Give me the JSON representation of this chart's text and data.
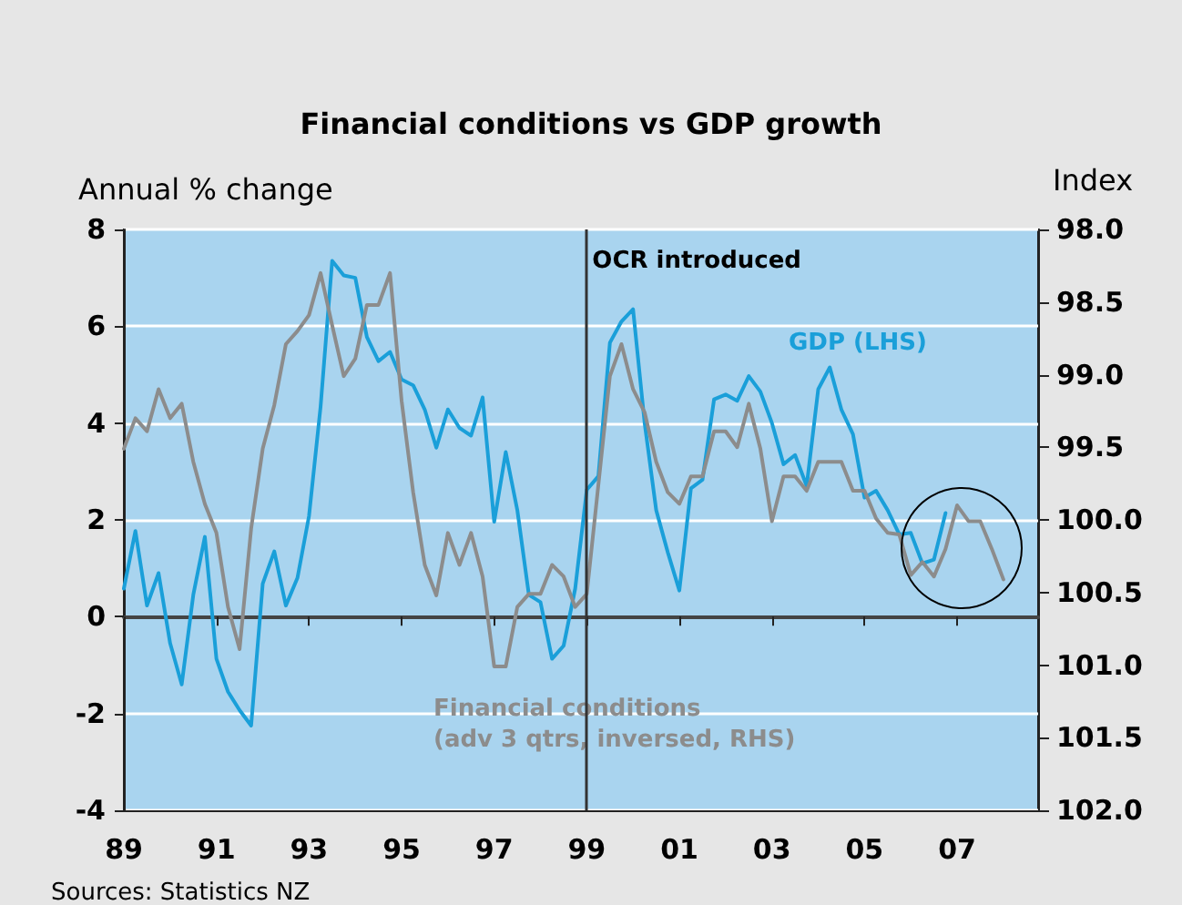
{
  "chart_data": {
    "type": "line",
    "title": "Financial conditions vs GDP growth",
    "ylabel": "Annual % change",
    "y2label": "Index",
    "annotations": [
      "Sources: Statistics NZ"
    ],
    "xlim": [
      1989,
      2008.75
    ],
    "xticks": [
      {
        "value": 1989,
        "label": "89"
      },
      {
        "value": 1991,
        "label": "91"
      },
      {
        "value": 1993,
        "label": "93"
      },
      {
        "value": 1995,
        "label": "95"
      },
      {
        "value": 1997,
        "label": "97"
      },
      {
        "value": 1999,
        "label": "99"
      },
      {
        "value": 2001,
        "label": "01"
      },
      {
        "value": 2003,
        "label": "03"
      },
      {
        "value": 2005,
        "label": "05"
      },
      {
        "value": 2007,
        "label": "07"
      }
    ],
    "ylim": [
      -4,
      8
    ],
    "yticks": [
      -4,
      -2,
      0,
      2,
      4,
      6,
      8
    ],
    "y2lim": [
      102,
      98
    ],
    "y2ticks": [
      {
        "value": 98,
        "label": "98.0"
      },
      98.5,
      {
        "value": 99,
        "label": "99.0"
      },
      99.5,
      {
        "value": 100,
        "label": "100.0"
      },
      100.5,
      {
        "value": 101,
        "label": "101.0"
      },
      101.5,
      {
        "value": 102,
        "label": "102.0"
      }
    ],
    "grid": "y",
    "legend": false,
    "marker": "none",
    "line_style": "solid",
    "ref_lines": [
      {
        "axis": "x",
        "value": 1999,
        "label": "OCR introduced",
        "color": "#333333"
      }
    ],
    "series": [
      {
        "name": "GDP (LHS)",
        "color": "#1a9fd9",
        "x": [
          1989,
          1989.25,
          1989.5,
          1989.75,
          1990,
          1990.25,
          1990.5,
          1990.75,
          1991,
          1991.25,
          1991.5,
          1991.75,
          1992,
          1992.25,
          1992.5,
          1992.75,
          1993,
          1993.25,
          1993.5,
          1993.75,
          1994,
          1994.25,
          1994.5,
          1994.75,
          1995,
          1995.25,
          1995.5,
          1995.75,
          1996,
          1996.25,
          1996.5,
          1996.75,
          1997,
          1997.25,
          1997.5,
          1997.75,
          1998,
          1998.25,
          1998.5,
          1998.75,
          1999,
          1999.25,
          1999.5,
          1999.75,
          2000,
          2000.25,
          2000.5,
          2000.75,
          2001,
          2001.25,
          2001.5,
          2001.75,
          2002,
          2002.25,
          2002.5,
          2002.75,
          2003,
          2003.25,
          2003.5,
          2003.75,
          2004,
          2004.25,
          2004.5,
          2004.75,
          2005,
          2005.25,
          2005.5,
          2005.75,
          2006,
          2006.25,
          2006.5,
          2006.75
        ],
        "values": [
          0.58,
          1.77,
          0.23,
          0.9,
          -0.55,
          -1.4,
          0.45,
          1.65,
          -0.87,
          -1.55,
          -1.93,
          -2.25,
          0.68,
          1.35,
          0.23,
          0.8,
          2.08,
          4.34,
          7.35,
          7.05,
          7.0,
          5.78,
          5.28,
          5.47,
          4.9,
          4.78,
          4.28,
          3.49,
          4.28,
          3.9,
          3.74,
          4.53,
          1.96,
          3.4,
          2.2,
          0.45,
          0.3,
          -0.87,
          -0.6,
          0.58,
          2.62,
          2.9,
          5.66,
          6.1,
          6.35,
          4.0,
          2.2,
          1.33,
          0.54,
          2.65,
          2.83,
          4.49,
          4.59,
          4.46,
          4.97,
          4.65,
          4.0,
          3.15,
          3.34,
          2.7,
          4.7,
          5.15,
          4.28,
          3.77,
          2.46,
          2.6,
          2.2,
          1.7,
          1.73,
          1.1,
          1.18,
          2.14
        ]
      },
      {
        "name": "Financial conditions\n(adv 3 qtrs, inversed, RHS)",
        "color": "#8c8c8c",
        "axis": "y2",
        "x": [
          1989,
          1989.25,
          1989.5,
          1989.75,
          1990,
          1990.25,
          1990.5,
          1990.75,
          1991,
          1991.25,
          1991.5,
          1991.75,
          1992,
          1992.25,
          1992.5,
          1992.75,
          1993,
          1993.25,
          1993.5,
          1993.75,
          1994,
          1994.25,
          1994.5,
          1994.75,
          1995,
          1995.25,
          1995.5,
          1995.75,
          1996,
          1996.25,
          1996.5,
          1996.75,
          1997,
          1997.25,
          1997.5,
          1997.75,
          1998,
          1998.25,
          1998.5,
          1998.75,
          1999,
          1999.25,
          1999.5,
          1999.75,
          2000,
          2000.25,
          2000.5,
          2000.75,
          2001,
          2001.25,
          2001.5,
          2001.75,
          2002,
          2002.25,
          2002.5,
          2002.75,
          2003,
          2003.25,
          2003.5,
          2003.75,
          2004,
          2004.25,
          2004.5,
          2004.75,
          2005,
          2005.25,
          2005.5,
          2005.75,
          2006,
          2006.25,
          2006.5,
          2006.75,
          2007,
          2007.25,
          2007.5,
          2007.75,
          2008
        ],
        "values": [
          99.51,
          99.3,
          99.39,
          99.1,
          99.3,
          99.2,
          99.6,
          99.89,
          100.09,
          100.6,
          100.89,
          100.06,
          99.51,
          99.21,
          98.79,
          98.7,
          98.59,
          98.3,
          98.66,
          99.01,
          98.89,
          98.52,
          98.52,
          98.3,
          99.18,
          99.81,
          100.31,
          100.52,
          100.09,
          100.31,
          100.09,
          100.39,
          101.01,
          101.01,
          100.6,
          100.51,
          100.51,
          100.31,
          100.39,
          100.6,
          100.51,
          99.76,
          99.01,
          98.79,
          99.1,
          99.26,
          99.6,
          99.81,
          99.89,
          99.7,
          99.7,
          99.39,
          99.39,
          99.5,
          99.2,
          99.51,
          100.01,
          99.7,
          99.7,
          99.8,
          99.6,
          99.6,
          99.6,
          99.8,
          99.8,
          99.99,
          100.09,
          100.1,
          100.38,
          100.29,
          100.39,
          100.2,
          99.9,
          100.01,
          100.01,
          100.2,
          100.41
        ]
      }
    ]
  }
}
